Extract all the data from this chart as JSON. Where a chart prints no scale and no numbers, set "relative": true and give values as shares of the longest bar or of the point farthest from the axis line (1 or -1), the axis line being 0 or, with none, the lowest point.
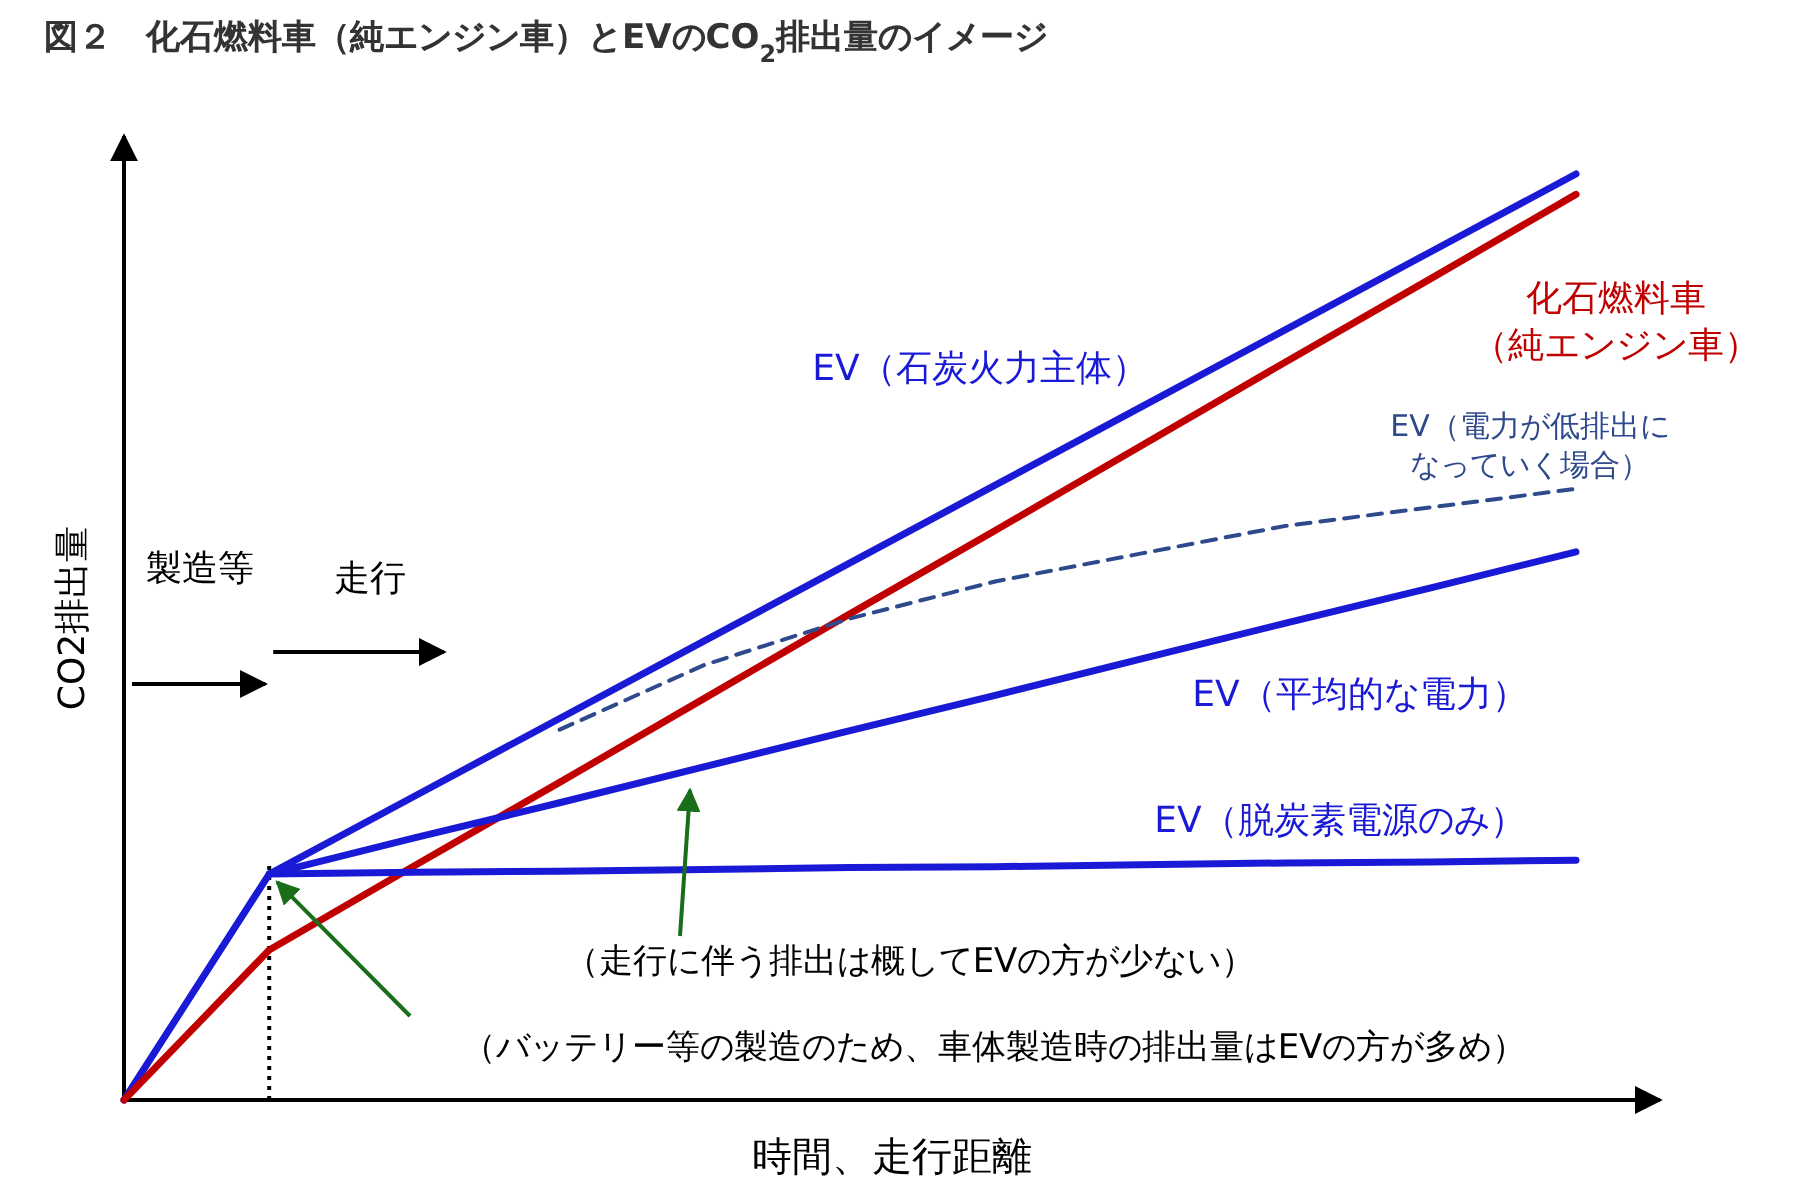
{
  "chart_data": {
    "type": "line",
    "relative": true,
    "legend": false,
    "title": "図２　化石燃料車（純エンジン車）とEVのCO$_{2}$排出量のイメージ",
    "xlabel": "時間、走行距離",
    "ylabel": "CO2排出量",
    "categories": [
      null,
      null,
      null,
      null,
      null,
      null,
      null,
      null,
      null,
      null,
      null
    ],
    "series": [
      {
        "name": "EV（石炭火力主体）",
        "color": "#1a1ad6",
        "values": [
          0,
          0.244,
          0.328,
          0.412,
          0.496,
          0.58,
          0.664,
          0.748,
          0.832,
          0.916,
          1
        ]
      },
      {
        "name": "化石燃料車（純エンジン車）",
        "color": "#c00000",
        "values": [
          0,
          0.162,
          0.253,
          0.343,
          0.434,
          0.525,
          0.615,
          0.706,
          0.797,
          0.887,
          0.978
        ]
      },
      {
        "name": "EV（電力が低排出になっていく場合）",
        "color": "#2e4a8c",
        "line_style": "dashed",
        "values": [
          null,
          null,
          null,
          0.4,
          0.47,
          0.52,
          0.56,
          0.59,
          0.62,
          0.64,
          0.66
        ]
      },
      {
        "name": "EV（平均的な電力）",
        "color": "#1a1ad6",
        "values": [
          null,
          0.244,
          0.283,
          0.321,
          0.36,
          0.399,
          0.437,
          0.476,
          0.515,
          0.553,
          0.592
        ]
      },
      {
        "name": "EV（脱炭素電源のみ）",
        "color": "#1a1ad6",
        "values": [
          null,
          0.244,
          0.246,
          0.247,
          0.249,
          0.251,
          0.252,
          0.254,
          0.256,
          0.257,
          0.259
        ]
      }
    ],
    "annotations": [
      "製造等",
      "走行",
      "（走行に伴う排出は概してEVの方が少ない）",
      "（バッテリー等の製造のため、車体製造時の排出量はEVの方が多め）"
    ]
  }
}
